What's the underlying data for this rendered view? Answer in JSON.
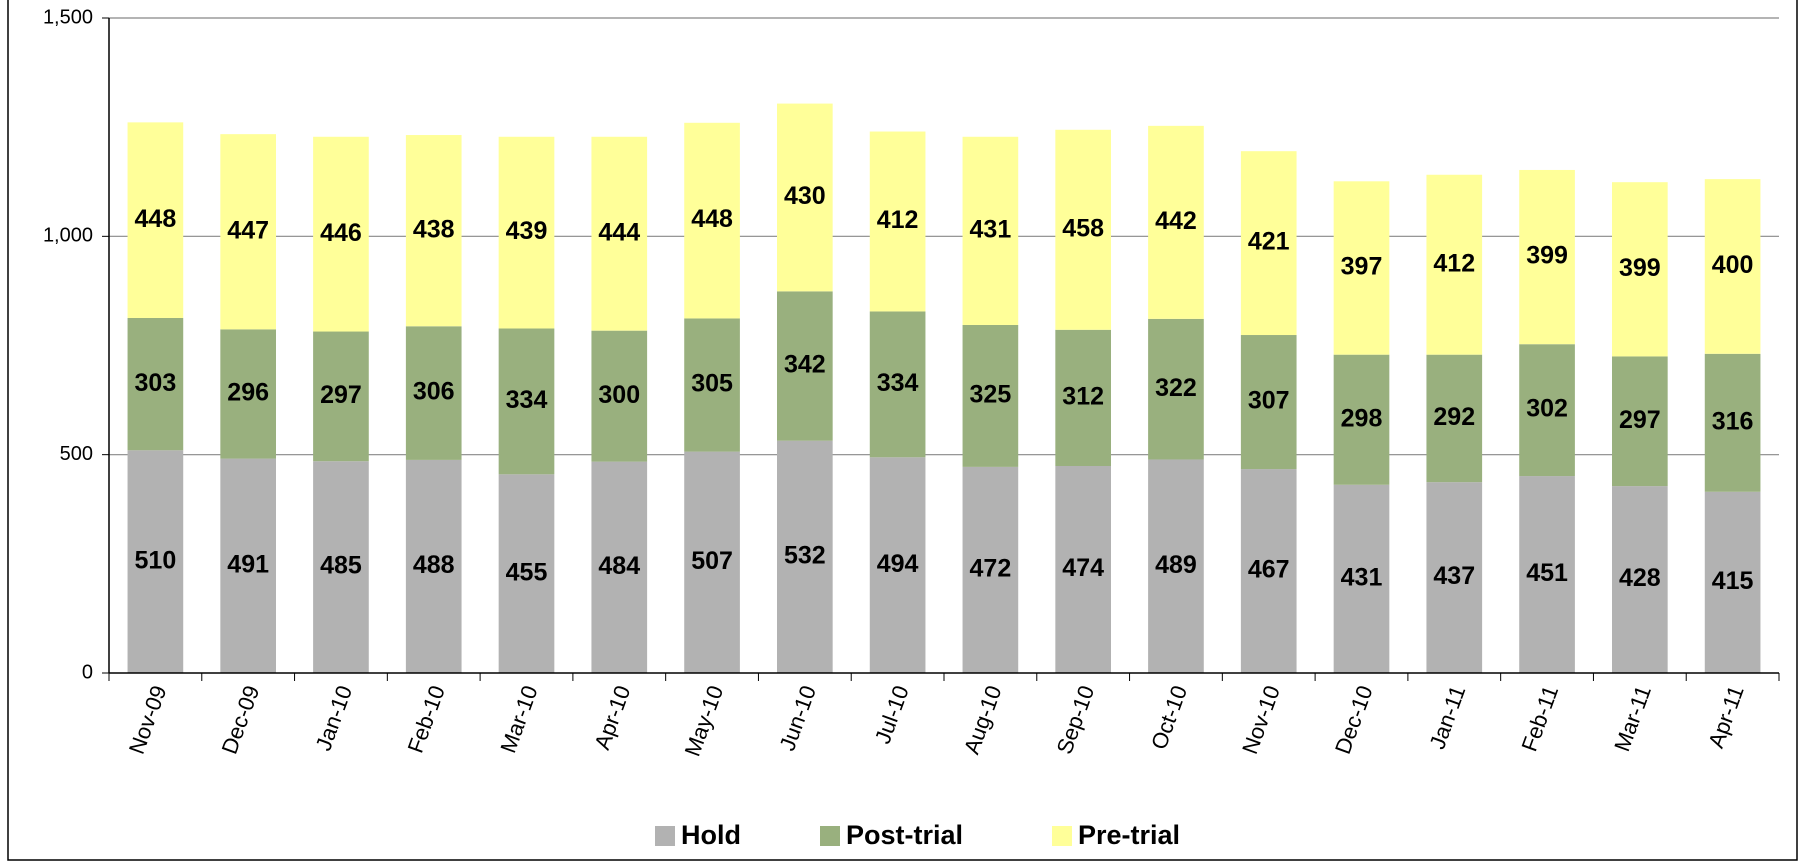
{
  "chart_data": {
    "type": "stacked_bar",
    "categories": [
      "Nov-09",
      "Dec-09",
      "Jan-10",
      "Feb-10",
      "Mar-10",
      "Apr-10",
      "May-10",
      "Jun-10",
      "Jul-10",
      "Aug-10",
      "Sep-10",
      "Oct-10",
      "Nov-10",
      "Dec-10",
      "Jan-11",
      "Feb-11",
      "Mar-11",
      "Apr-11"
    ],
    "series": [
      {
        "name": "Hold",
        "color": "#b2b2b2",
        "values": [
          510,
          491,
          485,
          488,
          455,
          484,
          507,
          532,
          494,
          472,
          474,
          489,
          467,
          431,
          437,
          451,
          428,
          415
        ]
      },
      {
        "name": "Post-trial",
        "color": "#99b07e",
        "values": [
          303,
          296,
          297,
          306,
          334,
          300,
          305,
          342,
          334,
          325,
          312,
          322,
          307,
          298,
          292,
          302,
          297,
          316
        ]
      },
      {
        "name": "Pre-trial",
        "color": "#ffff99",
        "values": [
          448,
          447,
          446,
          438,
          439,
          444,
          448,
          430,
          412,
          431,
          458,
          442,
          421,
          397,
          412,
          399,
          399,
          400
        ]
      }
    ],
    "ylim": [
      0,
      1500
    ],
    "yticks": [
      0,
      500,
      {
        "value": 1000,
        "label": "1,000"
      },
      {
        "value": 1500,
        "label": "1,500"
      }
    ],
    "grid": true,
    "legend": "bottom"
  }
}
